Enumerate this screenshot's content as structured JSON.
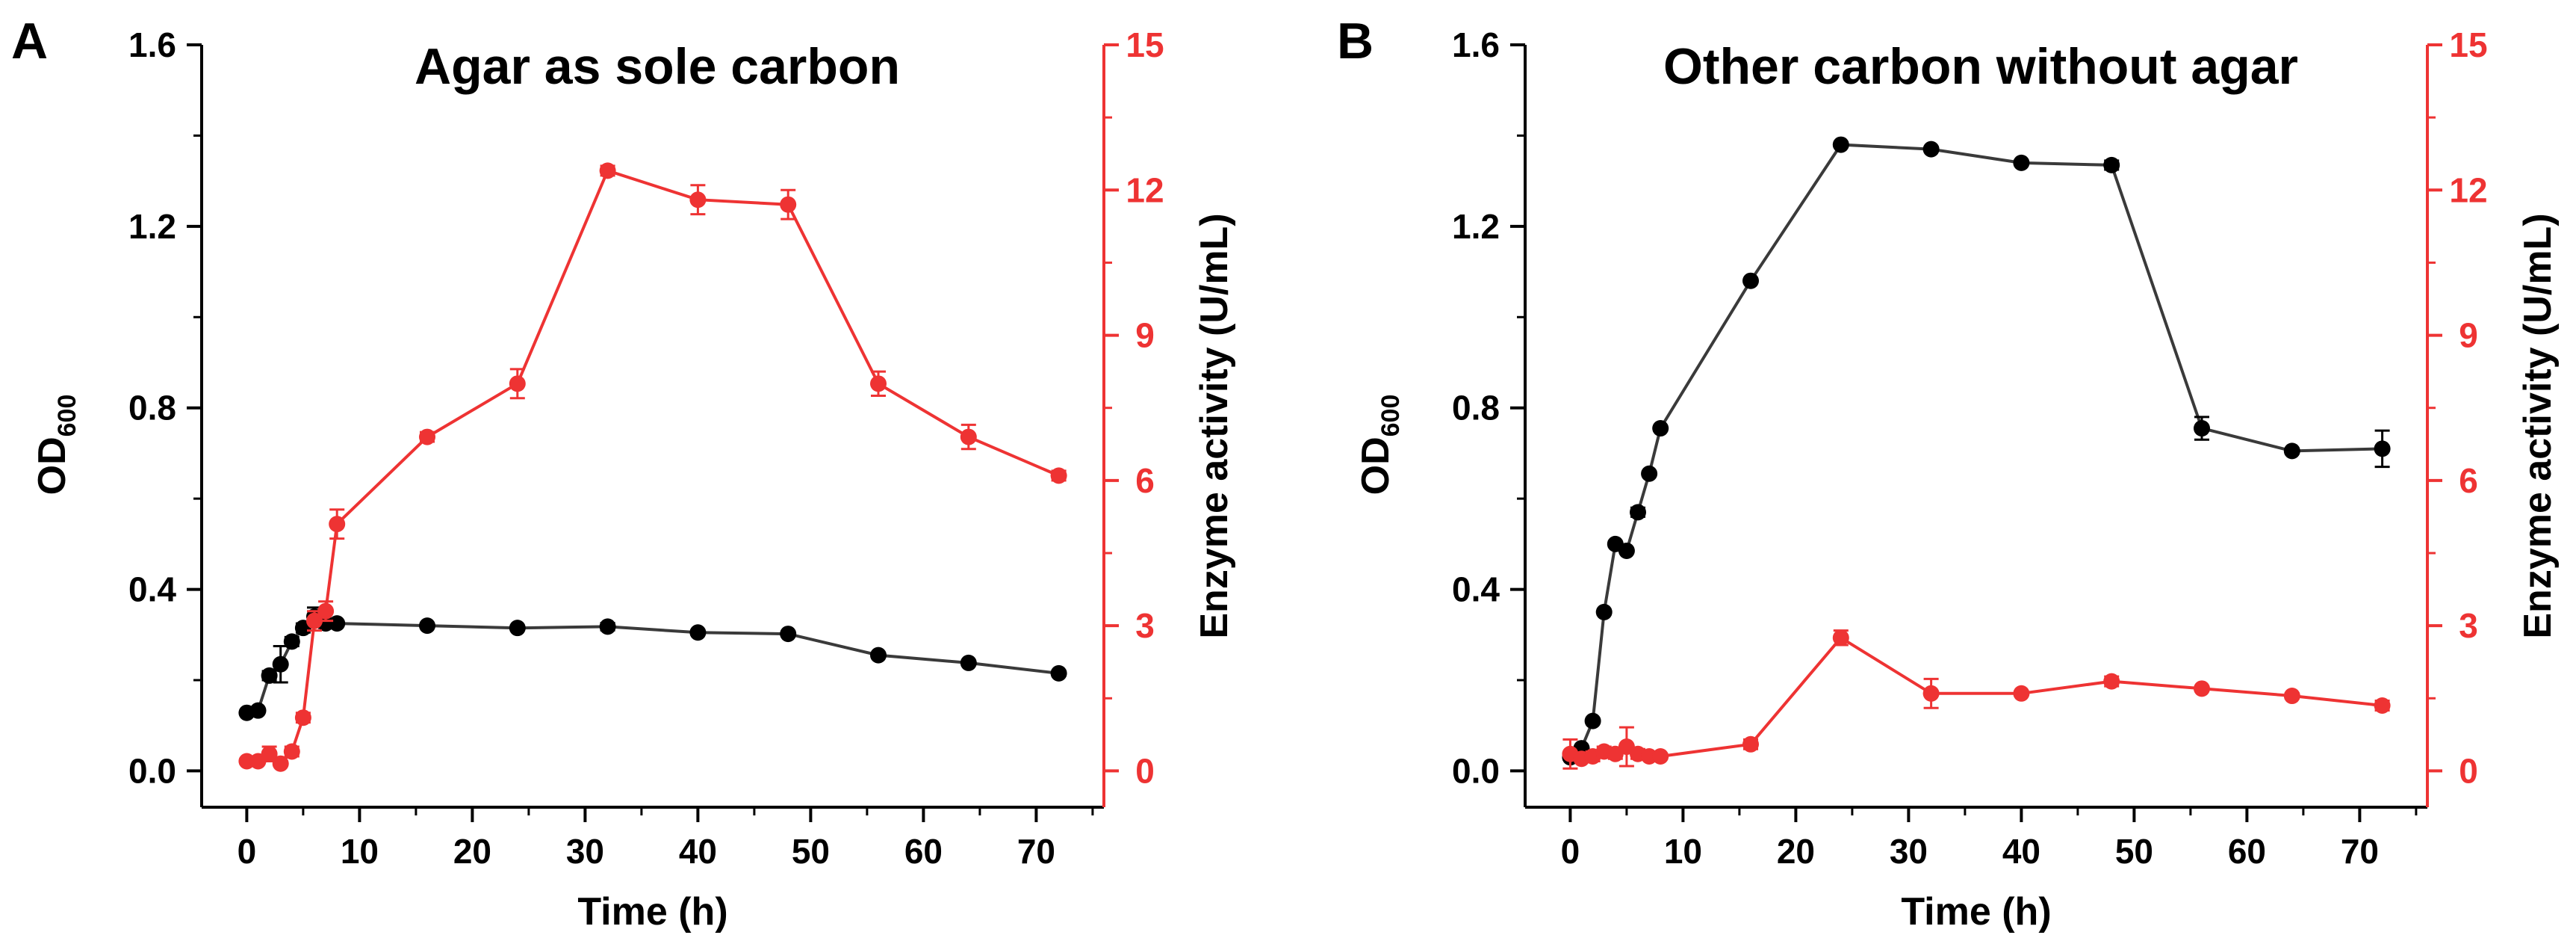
{
  "colors": {
    "od": "#3a3a3a",
    "odMarker": "#000000",
    "enzyme": "#ee3333",
    "axis": "#000000",
    "rightAxis": "#ee3333"
  },
  "chart_data": [
    {
      "type": "line",
      "panel_label": "A",
      "title": "Agar as  sole carbon",
      "xlabel": "Time (h)",
      "ylabel_left": {
        "main": "OD",
        "sub": "600"
      },
      "ylabel_right": "Enzyme activity (U/mL)",
      "xlim": [
        -4,
        76
      ],
      "ylim_left": [
        -0.08,
        1.6
      ],
      "ylim_right": [
        -0.75,
        15
      ],
      "x_ticks": [
        "0",
        "10",
        "20",
        "30",
        "40",
        "50",
        "60",
        "70"
      ],
      "y_ticks_left": [
        "0.0",
        "0.4",
        "0.8",
        "1.2",
        "1.6"
      ],
      "y_ticks_right": [
        "0",
        "3",
        "6",
        "9",
        "12",
        "15"
      ],
      "series": [
        {
          "name": "OD600",
          "axis": "left",
          "color": "#3a3a3a",
          "x": [
            0,
            1,
            2,
            3,
            4,
            5,
            6,
            7,
            8,
            16,
            24,
            32,
            40,
            48,
            56,
            64,
            72
          ],
          "y": [
            0.128,
            0.133,
            0.21,
            0.235,
            0.285,
            0.315,
            0.34,
            0.325,
            0.325,
            0.32,
            0.315,
            0.318,
            0.305,
            0.302,
            0.255,
            0.238,
            0.215
          ],
          "err": [
            0.005,
            0.005,
            0.01,
            0.04,
            0.01,
            0.01,
            0.02,
            0.01,
            0.005,
            0.005,
            0.005,
            0.008,
            0.005,
            0.005,
            0.005,
            0.005,
            0.005
          ]
        },
        {
          "name": "Enzyme activity",
          "axis": "right",
          "color": "#ee3333",
          "x": [
            0,
            1,
            2,
            3,
            4,
            5,
            6,
            7,
            8,
            16,
            24,
            32,
            40,
            48,
            56,
            64,
            72
          ],
          "y": [
            0.2,
            0.2,
            0.35,
            0.15,
            0.4,
            1.1,
            3.1,
            3.3,
            5.1,
            6.9,
            8.0,
            12.4,
            11.8,
            11.7,
            8.0,
            6.9,
            6.1
          ],
          "err": [
            0.05,
            0.05,
            0.15,
            0.05,
            0.1,
            0.1,
            0.2,
            0.2,
            0.3,
            0.1,
            0.3,
            0.1,
            0.3,
            0.3,
            0.25,
            0.25,
            0.1
          ]
        }
      ]
    },
    {
      "type": "line",
      "panel_label": "B",
      "title": "Other carbon without agar",
      "xlabel": "Time (h)",
      "ylabel_left": {
        "main": "OD",
        "sub": "600"
      },
      "ylabel_right": "Enzyme activity (U/mL)",
      "xlim": [
        -4,
        76
      ],
      "ylim_left": [
        -0.08,
        1.6
      ],
      "ylim_right": [
        -0.75,
        15
      ],
      "x_ticks": [
        "0",
        "10",
        "20",
        "30",
        "40",
        "50",
        "60",
        "70"
      ],
      "y_ticks_left": [
        "0.0",
        "0.4",
        "0.8",
        "1.2",
        "1.6"
      ],
      "y_ticks_right": [
        "0",
        "3",
        "6",
        "9",
        "12",
        "15"
      ],
      "series": [
        {
          "name": "OD600",
          "axis": "left",
          "color": "#3a3a3a",
          "x": [
            0,
            1,
            2,
            3,
            4,
            5,
            6,
            7,
            8,
            16,
            24,
            32,
            40,
            48,
            56,
            64,
            72
          ],
          "y": [
            0.03,
            0.05,
            0.11,
            0.35,
            0.5,
            0.485,
            0.57,
            0.655,
            0.755,
            1.08,
            1.38,
            1.37,
            1.34,
            1.335,
            0.755,
            0.705,
            0.71
          ],
          "err": [
            0.005,
            0.005,
            0.005,
            0.005,
            0.005,
            0.005,
            0.01,
            0.005,
            0.005,
            0.005,
            0.005,
            0.005,
            0.005,
            0.01,
            0.025,
            0.005,
            0.04
          ]
        },
        {
          "name": "Enzyme activity",
          "axis": "right",
          "color": "#ee3333",
          "x": [
            0,
            1,
            2,
            3,
            4,
            5,
            6,
            7,
            8,
            16,
            24,
            32,
            40,
            48,
            56,
            64,
            72
          ],
          "y": [
            0.35,
            0.25,
            0.3,
            0.4,
            0.35,
            0.5,
            0.35,
            0.3,
            0.3,
            0.55,
            2.75,
            1.6,
            1.6,
            1.85,
            1.7,
            1.55,
            1.35
          ],
          "err": [
            0.3,
            0.05,
            0.1,
            0.1,
            0.1,
            0.4,
            0.1,
            0.05,
            0.05,
            0.1,
            0.15,
            0.3,
            0.05,
            0.1,
            0.05,
            0.05,
            0.1
          ]
        }
      ]
    }
  ]
}
